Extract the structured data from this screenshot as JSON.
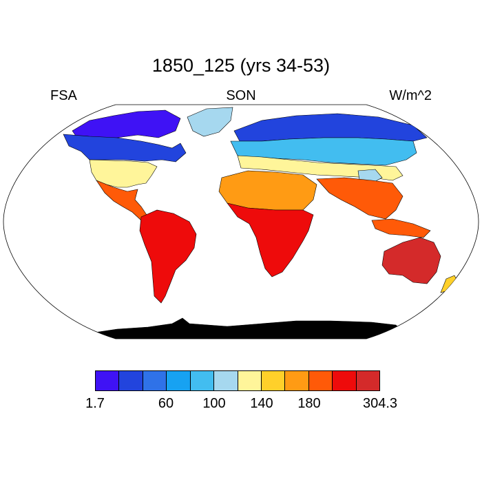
{
  "title": "1850_125 (yrs 34-53)",
  "variable": "FSA",
  "season": "SON",
  "units": "W/m^2",
  "colorbar": {
    "colors": [
      "#3f12f5",
      "#2244dd",
      "#2f72e8",
      "#17a2f2",
      "#42bdf0",
      "#a6d8ef",
      "#fff59a",
      "#ffd02a",
      "#ff9b14",
      "#ff5a08",
      "#ee0b0b",
      "#d42a2a"
    ],
    "tick_labels": [
      "1.7",
      "60",
      "100",
      "140",
      "180",
      "304.3"
    ]
  },
  "map": {
    "projection": "Robinson",
    "ocean": "#ffffff",
    "coastline_color": "#000000",
    "regions": [
      {
        "name": "arctic-north-america",
        "color_index": 0
      },
      {
        "name": "canada",
        "color_index": 2
      },
      {
        "name": "usa",
        "color_index": 6
      },
      {
        "name": "mexico-central-america",
        "color_index": 9
      },
      {
        "name": "south-america",
        "color_index": 10
      },
      {
        "name": "greenland",
        "color_index": 0
      },
      {
        "name": "siberia",
        "color_index": 1
      },
      {
        "name": "europe-russia",
        "color_index": 4
      },
      {
        "name": "mediterranean",
        "color_index": 6
      },
      {
        "name": "sahara",
        "color_index": 8
      },
      {
        "name": "africa",
        "color_index": 10
      },
      {
        "name": "south-asia",
        "color_index": 9
      },
      {
        "name": "tibet",
        "color_index": 5
      },
      {
        "name": "australia",
        "color_index": 11
      },
      {
        "name": "antarctica",
        "color_index": 1
      }
    ]
  }
}
